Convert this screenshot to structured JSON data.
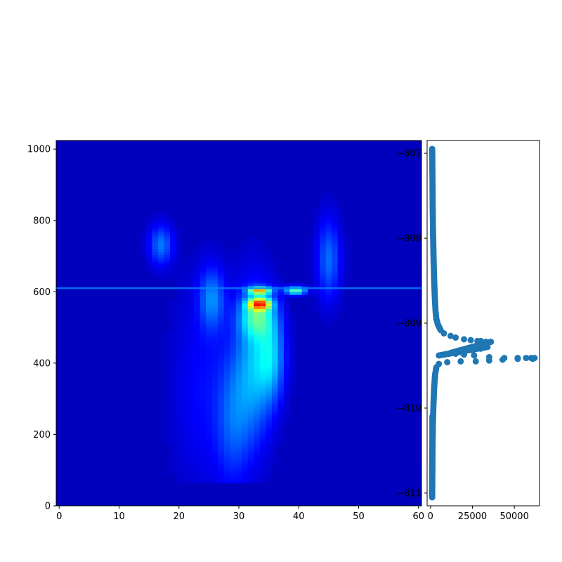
{
  "chart_data": [
    {
      "type": "heatmap",
      "title": "",
      "xlabel": "",
      "ylabel": "",
      "xlim": [
        -0.5,
        60.5
      ],
      "ylim": [
        1024,
        0
      ],
      "x_ticks": [
        "0",
        "10",
        "20",
        "30",
        "40",
        "50",
        "60"
      ],
      "y_ticks": [
        "0",
        "200",
        "400",
        "600",
        "800",
        "1000"
      ],
      "colormap": "jet",
      "value_range": [
        0,
        1
      ],
      "background_value": 0.06,
      "top_band": {
        "y_range": [
          0,
          70
        ],
        "value": 0.04
      },
      "horizontal_line": {
        "y": 610,
        "value": 0.26
      },
      "features": [
        {
          "x": 32.5,
          "y": 400,
          "sx": 2.2,
          "sy": 150,
          "amp": 0.22
        },
        {
          "x": 29.0,
          "y": 250,
          "sx": 2.0,
          "sy": 130,
          "amp": 0.13
        },
        {
          "x": 35.5,
          "y": 430,
          "sx": 1.6,
          "sy": 90,
          "amp": 0.22
        },
        {
          "x": 33.0,
          "y": 540,
          "sx": 2.0,
          "sy": 40,
          "amp": 0.25
        },
        {
          "x": 33.5,
          "y": 575,
          "sx": 1.3,
          "sy": 12,
          "amp": 0.55
        },
        {
          "x": 33.5,
          "y": 612,
          "sx": 1.3,
          "sy": 7,
          "amp": 0.55
        },
        {
          "x": 39.5,
          "y": 612,
          "sx": 1.2,
          "sy": 8,
          "amp": 0.42
        },
        {
          "x": 25.5,
          "y": 590,
          "sx": 1.5,
          "sy": 60,
          "amp": 0.18
        },
        {
          "x": 17.0,
          "y": 740,
          "sx": 1.4,
          "sy": 40,
          "amp": 0.18
        },
        {
          "x": 45.0,
          "y": 700,
          "sx": 1.4,
          "sy": 80,
          "amp": 0.17
        },
        {
          "x": 24.0,
          "y": 340,
          "sx": 3.5,
          "sy": 200,
          "amp": 0.07
        }
      ]
    },
    {
      "type": "scatter",
      "title": "",
      "xlabel": "",
      "ylabel": "",
      "xlim": [
        -2000,
        65000
      ],
      "ylim": [
        -811.15,
        -806.85
      ],
      "x_ticks": [
        0,
        25000,
        50000
      ],
      "y_ticks": [
        -807,
        -808,
        -809,
        -810,
        -811
      ],
      "marker_color": "#1f77b4",
      "x": [
        1000,
        1100,
        1200,
        1300,
        1500,
        1800,
        2200,
        2600,
        3000,
        3500,
        4500,
        6000,
        8000,
        12000,
        15000,
        20000,
        24000,
        28000,
        30000,
        33000,
        36000,
        12000,
        18000,
        25000,
        30000,
        34000,
        5000,
        8000,
        11000,
        15000,
        20000,
        26000,
        35000,
        44000,
        52000,
        57000,
        60000,
        62000,
        61000,
        52000,
        43000,
        35000,
        27000,
        18000,
        10000,
        5000,
        3500,
        2800,
        2200,
        1800,
        1400,
        1200,
        1100,
        1000,
        1000,
        1100,
        1300,
        1200,
        1000
      ],
      "y": [
        -806.95,
        -807.1,
        -807.3,
        -807.6,
        -807.9,
        -808.2,
        -808.5,
        -808.7,
        -808.85,
        -808.95,
        -809.02,
        -809.08,
        -809.12,
        -809.15,
        -809.17,
        -809.19,
        -809.2,
        -809.21,
        -809.21,
        -809.22,
        -809.22,
        -809.35,
        -809.34,
        -809.32,
        -809.3,
        -809.28,
        -809.38,
        -809.37,
        -809.36,
        -809.36,
        -809.37,
        -809.38,
        -809.4,
        -809.41,
        -809.41,
        -809.41,
        -809.41,
        -809.41,
        -809.42,
        -809.42,
        -809.43,
        -809.44,
        -809.45,
        -809.45,
        -809.46,
        -809.48,
        -809.52,
        -809.6,
        -809.75,
        -809.95,
        -810.2,
        -810.45,
        -810.7,
        -810.9,
        -811.05,
        -810.6,
        -810.3,
        -810.1,
        -811.0
      ]
    }
  ]
}
